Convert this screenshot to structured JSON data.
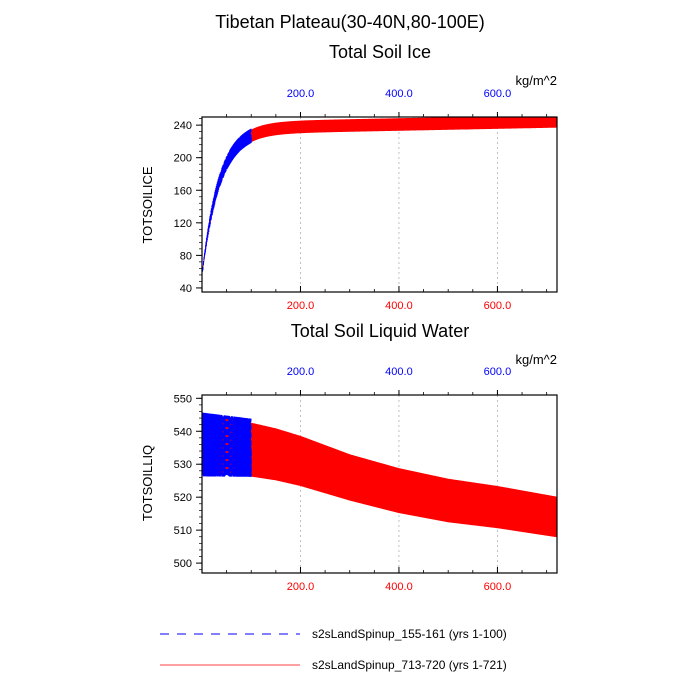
{
  "title": "Tibetan Plateau(30-40N,80-100E)",
  "colors": {
    "series_red": "#ff0000",
    "series_blue": "#0000ff",
    "grid": "#b0b0b0"
  },
  "legend": [
    {
      "label": "s2sLandSpinup_155-161 (yrs 1-100)",
      "color": "#0000ff",
      "style": "dashed"
    },
    {
      "label": "s2sLandSpinup_713-720 (yrs 1-721)",
      "color": "#ff0000",
      "style": "solid"
    }
  ],
  "chart_data": [
    {
      "type": "line",
      "title": "Total Soil Ice",
      "ylabel": "TOTSOILICE",
      "units": "kg/m^2",
      "xlim": [
        0,
        721
      ],
      "ylim": [
        35,
        250
      ],
      "yticks": [
        "40",
        "80",
        "120",
        "160",
        "200",
        "240"
      ],
      "bottom_xticks": [
        "200.0",
        "400.0",
        "600.0"
      ],
      "top_xticks": [
        "200.0",
        "400.0",
        "600.0"
      ],
      "grid": true,
      "series": [
        {
          "name": "s2sLandSpinup_713-720 (yrs 1-721)",
          "color": "#ff0000",
          "style": "solid",
          "x_range": [
            1,
            721
          ],
          "start": 55,
          "plateau": 236,
          "tau": 35,
          "drift": 0.012,
          "amp": 8.5
        },
        {
          "name": "s2sLandSpinup_155-161 (yrs 1-100)",
          "color": "#0000ff",
          "style": "dashed",
          "x_range": [
            1,
            100
          ],
          "start": 55,
          "plateau": 236,
          "tau": 35,
          "drift": 0.012,
          "amp": 9.5
        }
      ]
    },
    {
      "type": "line",
      "title": "Total Soil Liquid Water",
      "ylabel": "TOTSOILLIQ",
      "units": "kg/m^2",
      "xlim": [
        0,
        721
      ],
      "ylim": [
        497,
        551
      ],
      "yticks": [
        "500",
        "510",
        "520",
        "530",
        "540",
        "550"
      ],
      "bottom_xticks": [
        "200.0",
        "400.0",
        "600.0"
      ],
      "top_xticks": [
        "200.0",
        "400.0",
        "600.0"
      ],
      "grid": true,
      "series": [
        {
          "name": "s2sLandSpinup_713-720 (yrs 1-721)",
          "color": "#ff0000",
          "style": "solid",
          "x_range": [
            1,
            721
          ],
          "mean_points": [
            [
              0,
              536
            ],
            [
              80,
              535
            ],
            [
              150,
              533
            ],
            [
              200,
              531
            ],
            [
              300,
              526
            ],
            [
              400,
              522
            ],
            [
              500,
              519
            ],
            [
              600,
              517
            ],
            [
              721,
              514
            ]
          ],
          "amp_points": [
            [
              0,
              10
            ],
            [
              150,
              9
            ],
            [
              300,
              8
            ],
            [
              721,
              7
            ]
          ]
        },
        {
          "name": "s2sLandSpinup_155-161 (yrs 1-100)",
          "color": "#0000ff",
          "style": "dashed",
          "x_range": [
            1,
            100
          ],
          "mean_points": [
            [
              0,
              536
            ],
            [
              100,
              535
            ]
          ],
          "amp_points": [
            [
              0,
              11
            ],
            [
              100,
              10
            ]
          ]
        }
      ]
    }
  ]
}
